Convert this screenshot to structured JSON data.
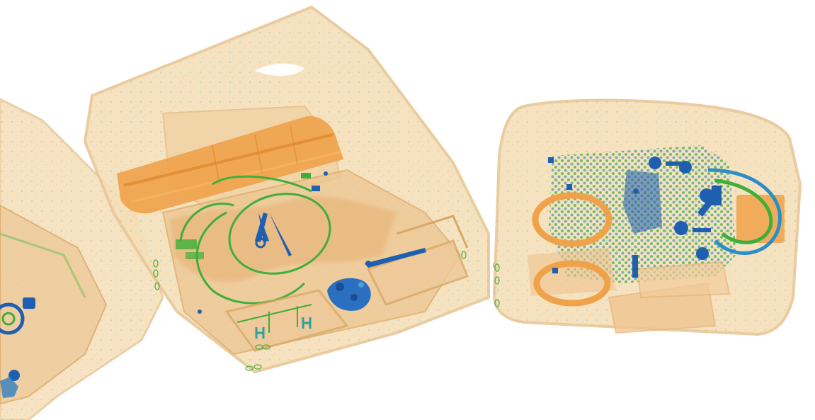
{
  "scene": {
    "kind": "x-ray baggage scan",
    "background_color": "#ffffff",
    "bag_count": 3
  },
  "palette": {
    "shell_fill": "#f6dfb8",
    "shell_edge": "#e9c796",
    "organic_orange": "#f0a24a",
    "organic_dark": "#e08a2e",
    "mixed_green": "#3fae3a",
    "metal_blue": "#1f5fb0",
    "speckle_cyan": "#7fc6cf"
  },
  "objects": [
    {
      "name": "left-bag",
      "material": "organic"
    },
    {
      "name": "middle-bag",
      "material": "organic"
    },
    {
      "name": "right-bag",
      "material": "organic"
    },
    {
      "name": "orange-bar-container",
      "material": "organic"
    },
    {
      "name": "green-cable-loop",
      "material": "mixed"
    },
    {
      "name": "metal-scissors",
      "material": "metal"
    },
    {
      "name": "metal-knife",
      "material": "metal"
    },
    {
      "name": "blue-dense-cluster",
      "material": "metal"
    },
    {
      "name": "cable-bundle",
      "material": "mixed"
    },
    {
      "name": "orange-rings",
      "material": "organic"
    },
    {
      "name": "metal-clasps",
      "material": "metal"
    }
  ]
}
